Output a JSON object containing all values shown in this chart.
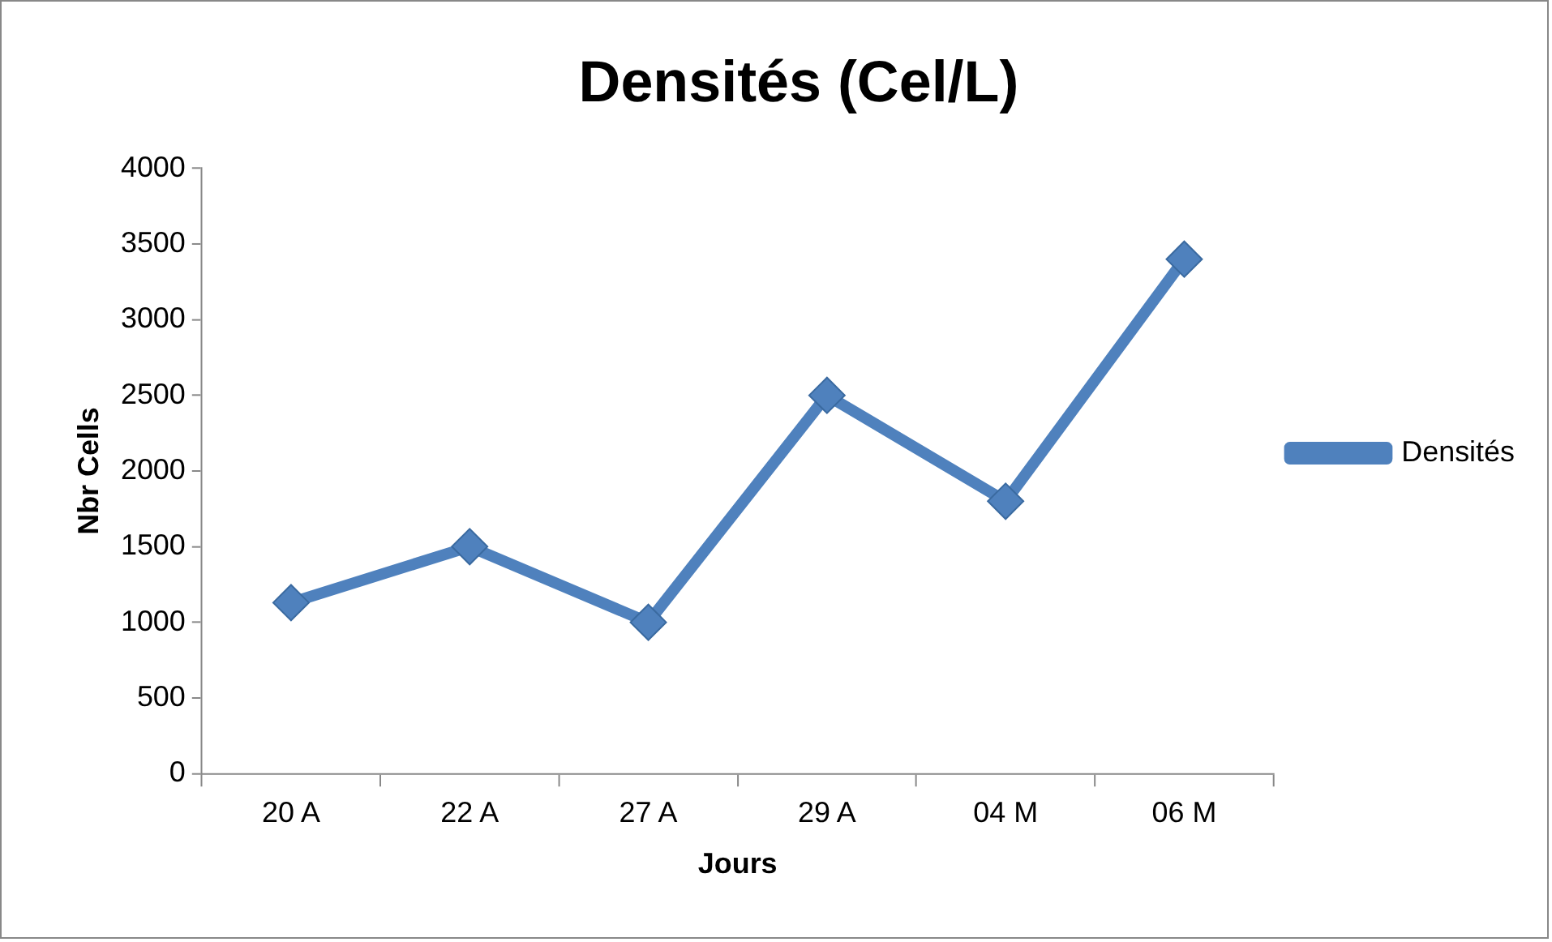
{
  "chart_data": {
    "type": "line",
    "title": "Densités (Cel/L)",
    "xlabel": "Jours",
    "ylabel": "Nbr Cells",
    "categories": [
      "20 A",
      "22 A",
      "27 A",
      "29 A",
      "04 M",
      "06 M"
    ],
    "series": [
      {
        "name": "Densités",
        "color": "#4f81bd",
        "values": [
          1130,
          1500,
          1000,
          2500,
          1800,
          3400
        ]
      }
    ],
    "ylim": [
      0,
      4000
    ],
    "yticks": [
      0,
      500,
      1000,
      1500,
      2000,
      2500,
      3000,
      3500,
      4000
    ],
    "grid": false,
    "legend": "right",
    "marker": "diamond",
    "line_style": "solid"
  }
}
